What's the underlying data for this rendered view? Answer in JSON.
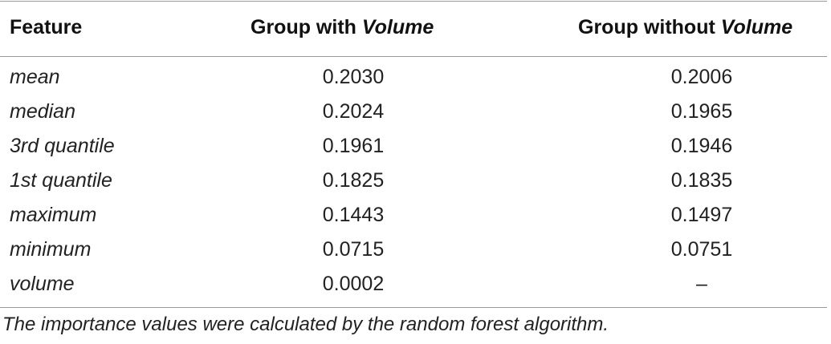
{
  "table": {
    "headers": {
      "feature": "Feature",
      "with_prefix": "Group with ",
      "with_italic": "Volume",
      "without_prefix": "Group without ",
      "without_italic": "Volume"
    },
    "rows": [
      {
        "feature": "mean",
        "with_volume": "0.2030",
        "without_volume": "0.2006"
      },
      {
        "feature": "median",
        "with_volume": "0.2024",
        "without_volume": "0.1965"
      },
      {
        "feature": "3rd quantile",
        "with_volume": "0.1961",
        "without_volume": "0.1946"
      },
      {
        "feature": "1st quantile",
        "with_volume": "0.1825",
        "without_volume": "0.1835"
      },
      {
        "feature": "maximum",
        "with_volume": "0.1443",
        "without_volume": "0.1497"
      },
      {
        "feature": "minimum",
        "with_volume": "0.0715",
        "without_volume": "0.0751"
      },
      {
        "feature": "volume",
        "with_volume": "0.0002",
        "without_volume": "–"
      }
    ]
  },
  "footnote": "The importance values were calculated by the random forest algorithm."
}
